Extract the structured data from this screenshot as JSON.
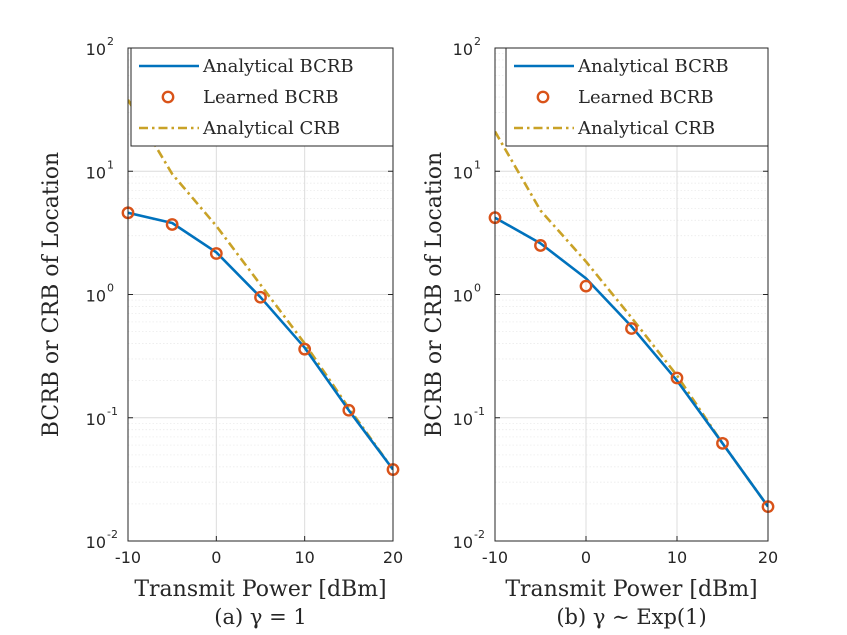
{
  "chart_data": [
    {
      "type": "line",
      "panel": "a",
      "caption": "(a) γ = 1",
      "xlabel": "Transmit Power [dBm]",
      "ylabel": "BCRB or CRB of Location",
      "yscale": "log",
      "xlim": [
        -10,
        20
      ],
      "ylim": [
        0.01,
        100
      ],
      "xticks": [
        "-10",
        "0",
        "10",
        "20"
      ],
      "yticks": [
        {
          "base": "10",
          "exp": "-2"
        },
        {
          "base": "10",
          "exp": "-1"
        },
        {
          "base": "10",
          "exp": "0"
        },
        {
          "base": "10",
          "exp": "1"
        },
        {
          "base": "10",
          "exp": "2"
        }
      ],
      "grid": true,
      "legend_position": "top-right",
      "series": [
        {
          "name": "Analytical BCRB",
          "style": "solid",
          "color": "#0072BD",
          "x": [
            -10,
            -5,
            0,
            5,
            10,
            15,
            20
          ],
          "y": [
            4.6,
            3.8,
            2.2,
            0.95,
            0.37,
            0.115,
            0.038
          ]
        },
        {
          "name": "Learned BCRB",
          "style": "circle",
          "color": "#D95319",
          "x": [
            -10,
            -5,
            0,
            5,
            10,
            15,
            20
          ],
          "y": [
            4.6,
            3.7,
            2.15,
            0.95,
            0.36,
            0.115,
            0.038
          ]
        },
        {
          "name": "Analytical CRB",
          "style": "dashdot",
          "color": "#C9A227",
          "x": [
            -10,
            -5,
            0,
            5,
            10,
            15,
            20
          ],
          "y": [
            38,
            9.5,
            3.6,
            1.2,
            0.4,
            0.12,
            0.038
          ]
        }
      ]
    },
    {
      "type": "line",
      "panel": "b",
      "caption": "(b) γ ∼ Exp(1)",
      "xlabel": "Transmit Power [dBm]",
      "ylabel": "BCRB or CRB of Location",
      "yscale": "log",
      "xlim": [
        -10,
        20
      ],
      "ylim": [
        0.01,
        100
      ],
      "xticks": [
        "-10",
        "0",
        "10",
        "20"
      ],
      "yticks": [
        {
          "base": "10",
          "exp": "-2"
        },
        {
          "base": "10",
          "exp": "-1"
        },
        {
          "base": "10",
          "exp": "0"
        },
        {
          "base": "10",
          "exp": "1"
        },
        {
          "base": "10",
          "exp": "2"
        }
      ],
      "grid": true,
      "legend_position": "top-right",
      "series": [
        {
          "name": "Analytical BCRB",
          "style": "solid",
          "color": "#0072BD",
          "x": [
            -10,
            -5,
            0,
            5,
            10,
            15,
            20
          ],
          "y": [
            4.2,
            2.6,
            1.35,
            0.55,
            0.2,
            0.062,
            0.019
          ]
        },
        {
          "name": "Learned BCRB",
          "style": "circle",
          "color": "#D95319",
          "x": [
            -10,
            -5,
            0,
            5,
            10,
            15,
            20
          ],
          "y": [
            4.2,
            2.5,
            1.17,
            0.53,
            0.21,
            0.062,
            0.019
          ]
        },
        {
          "name": "Analytical CRB",
          "style": "dashdot",
          "color": "#C9A227",
          "x": [
            -10,
            -5,
            0,
            5,
            10,
            15,
            20
          ],
          "y": [
            21,
            4.8,
            1.85,
            0.65,
            0.22,
            0.062,
            0.019
          ]
        }
      ]
    }
  ]
}
